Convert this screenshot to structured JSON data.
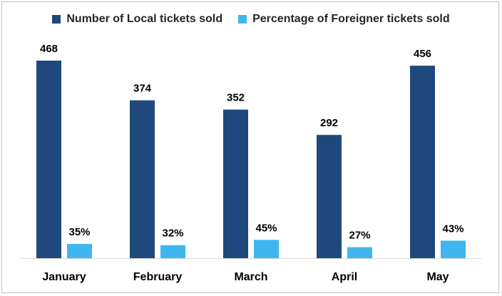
{
  "chart_data": {
    "type": "bar",
    "title": "",
    "xlabel": "",
    "ylabel": "",
    "categories": [
      "January",
      "February",
      "March",
      "April",
      "May"
    ],
    "series": [
      {
        "name": "Number of Local tickets sold",
        "values": [
          468,
          374,
          352,
          292,
          456
        ],
        "labels": [
          "468",
          "374",
          "352",
          "292",
          "456"
        ],
        "color": "#1f497d"
      },
      {
        "name": "Percentage of Foreigner tickets sold",
        "values": [
          35,
          32,
          45,
          27,
          43
        ],
        "labels": [
          "35%",
          "32%",
          "45%",
          "27%",
          "43%"
        ],
        "color": "#3fb6ef"
      }
    ],
    "legend_position": "top",
    "grid": false
  }
}
